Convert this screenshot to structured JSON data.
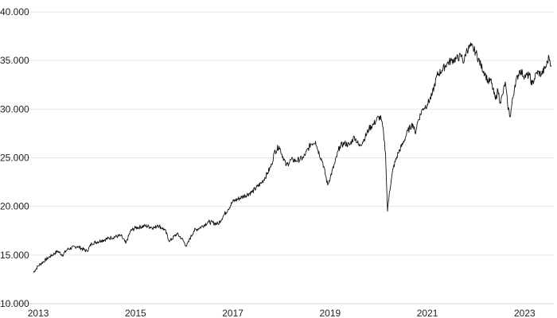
{
  "chart_data": {
    "type": "line",
    "title": "",
    "xlabel": "",
    "ylabel": "",
    "grid": "horizontal",
    "legend": "none",
    "line_color": "#111111",
    "xlim": [
      2012.9,
      2023.6
    ],
    "ylim": [
      10000,
      40000
    ],
    "y_ticks": [
      {
        "value": 10000,
        "label": "10.000"
      },
      {
        "value": 15000,
        "label": "15.000"
      },
      {
        "value": 20000,
        "label": "20.000"
      },
      {
        "value": 25000,
        "label": "25.000"
      },
      {
        "value": 30000,
        "label": "30.000"
      },
      {
        "value": 35000,
        "label": "35.000"
      },
      {
        "value": 40000,
        "label": "40.000"
      }
    ],
    "x_ticks": [
      {
        "value": 2013,
        "label": "2013"
      },
      {
        "value": 2015,
        "label": "2015"
      },
      {
        "value": 2017,
        "label": "2017"
      },
      {
        "value": 2019,
        "label": "2019"
      },
      {
        "value": 2021,
        "label": "2021"
      },
      {
        "value": 2023,
        "label": "2023"
      }
    ],
    "series": [
      {
        "x": [
          2012.9,
          2013.0,
          2013.2,
          2013.4,
          2013.5,
          2013.6,
          2013.8,
          2014.0,
          2014.1,
          2014.3,
          2014.5,
          2014.7,
          2014.8,
          2014.9,
          2015.0,
          2015.2,
          2015.4,
          2015.45,
          2015.6,
          2015.7,
          2015.85,
          2015.95,
          2016.05,
          2016.1,
          2016.2,
          2016.35,
          2016.5,
          2016.7,
          2016.8,
          2016.9,
          2017.0,
          2017.2,
          2017.4,
          2017.6,
          2017.7,
          2017.8,
          2017.85,
          2017.95,
          2018.1,
          2018.2,
          2018.3,
          2018.45,
          2018.6,
          2018.7,
          2018.75,
          2018.85,
          2018.95,
          2019.1,
          2019.2,
          2019.3,
          2019.4,
          2019.5,
          2019.6,
          2019.7,
          2019.8,
          2019.9,
          2020.0,
          2020.05,
          2020.1,
          2020.14,
          2020.18,
          2020.22,
          2020.3,
          2020.4,
          2020.5,
          2020.6,
          2020.7,
          2020.75,
          2020.8,
          2020.9,
          2021.0,
          2021.1,
          2021.2,
          2021.3,
          2021.4,
          2021.5,
          2021.6,
          2021.7,
          2021.75,
          2021.8,
          2021.9,
          2022.0,
          2022.1,
          2022.2,
          2022.25,
          2022.3,
          2022.4,
          2022.45,
          2022.5,
          2022.55,
          2022.6,
          2022.65,
          2022.7,
          2022.8,
          2022.9,
          2023.0,
          2023.1,
          2023.15,
          2023.25,
          2023.35,
          2023.45,
          2023.5,
          2023.55
        ],
        "values": [
          13200,
          13900,
          14700,
          15400,
          15000,
          15600,
          15900,
          15400,
          16200,
          16500,
          16800,
          17000,
          16200,
          17500,
          17800,
          18000,
          17800,
          18100,
          17600,
          16400,
          17200,
          16700,
          15900,
          16500,
          17500,
          17900,
          18400,
          18200,
          19000,
          19700,
          20500,
          21000,
          21500,
          22500,
          23300,
          24300,
          25500,
          26200,
          24200,
          24800,
          24700,
          25000,
          26400,
          26700,
          25800,
          24500,
          22200,
          24500,
          26200,
          26500,
          26300,
          27200,
          26200,
          26900,
          28000,
          28500,
          29200,
          29000,
          27500,
          25500,
          19500,
          21500,
          24000,
          25500,
          26500,
          27800,
          28500,
          27500,
          28700,
          30000,
          30500,
          31500,
          33500,
          34000,
          34700,
          35000,
          35200,
          35500,
          34800,
          36000,
          36500,
          35800,
          34500,
          33500,
          32800,
          33000,
          31000,
          32000,
          30700,
          31500,
          32800,
          30500,
          29200,
          32500,
          34000,
          33400,
          33500,
          32500,
          33800,
          33600,
          34500,
          35400,
          34500
        ]
      }
    ]
  }
}
